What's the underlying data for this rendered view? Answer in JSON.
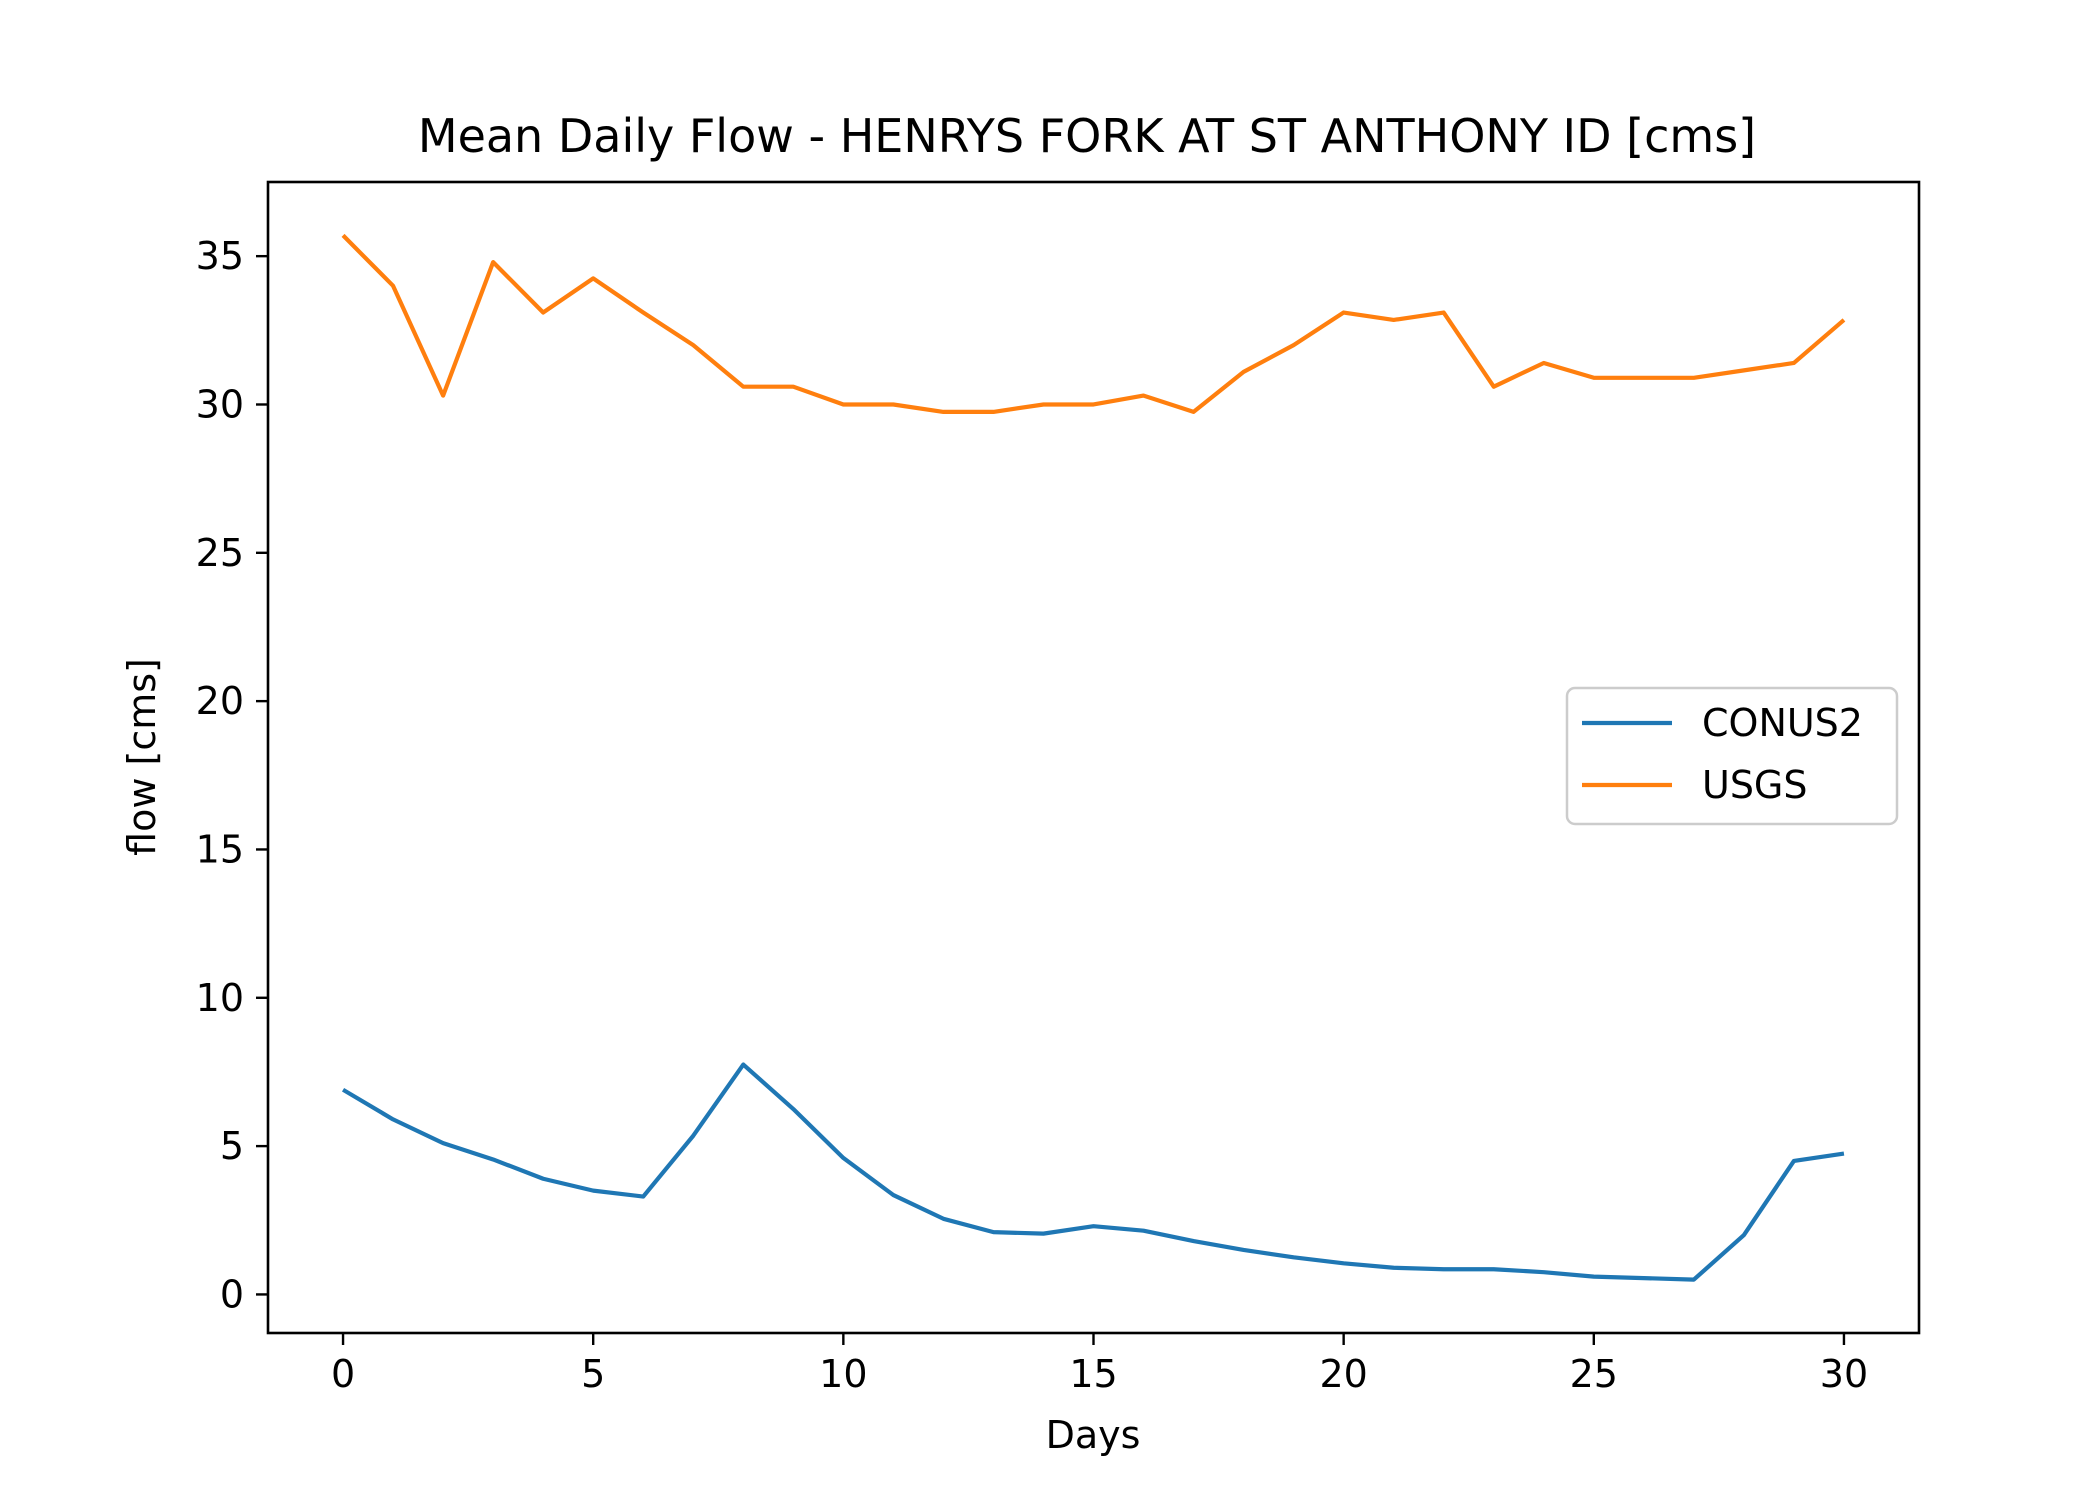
{
  "chart_data": {
    "type": "line",
    "title": "Mean Daily Flow - HENRYS FORK AT ST ANTHONY ID [cms]",
    "xlabel": "Days",
    "ylabel": "flow [cms]",
    "xlim": [
      -1.5,
      31.5
    ],
    "ylim": [
      -1.3,
      37.5
    ],
    "xticks": [
      0,
      5,
      10,
      15,
      20,
      25,
      30
    ],
    "yticks": [
      0,
      5,
      10,
      15,
      20,
      25,
      30,
      35
    ],
    "grid": false,
    "legend_position": "center-right",
    "x": [
      0,
      1,
      2,
      3,
      4,
      5,
      6,
      7,
      8,
      9,
      10,
      11,
      12,
      13,
      14,
      15,
      16,
      17,
      18,
      19,
      20,
      21,
      22,
      23,
      24,
      25,
      26,
      27,
      28,
      29,
      30
    ],
    "series": [
      {
        "name": "CONUS2",
        "color": "#1f77b4",
        "values": [
          6.9,
          5.9,
          5.1,
          4.55,
          3.9,
          3.5,
          3.3,
          5.35,
          7.75,
          6.25,
          4.6,
          3.35,
          2.55,
          2.1,
          2.05,
          2.3,
          2.15,
          1.8,
          1.5,
          1.25,
          1.05,
          0.9,
          0.85,
          0.85,
          0.75,
          0.6,
          0.55,
          0.5,
          2.0,
          4.5,
          4.75
        ]
      },
      {
        "name": "USGS",
        "color": "#ff7f0e",
        "values": [
          35.7,
          34.0,
          30.3,
          34.8,
          33.1,
          34.25,
          33.1,
          32.0,
          30.6,
          30.6,
          30.0,
          30.0,
          29.75,
          29.75,
          30.0,
          30.0,
          30.3,
          29.75,
          31.1,
          32.0,
          33.1,
          32.85,
          33.1,
          30.6,
          31.4,
          30.9,
          30.9,
          30.9,
          31.15,
          31.4,
          32.85
        ]
      }
    ]
  }
}
